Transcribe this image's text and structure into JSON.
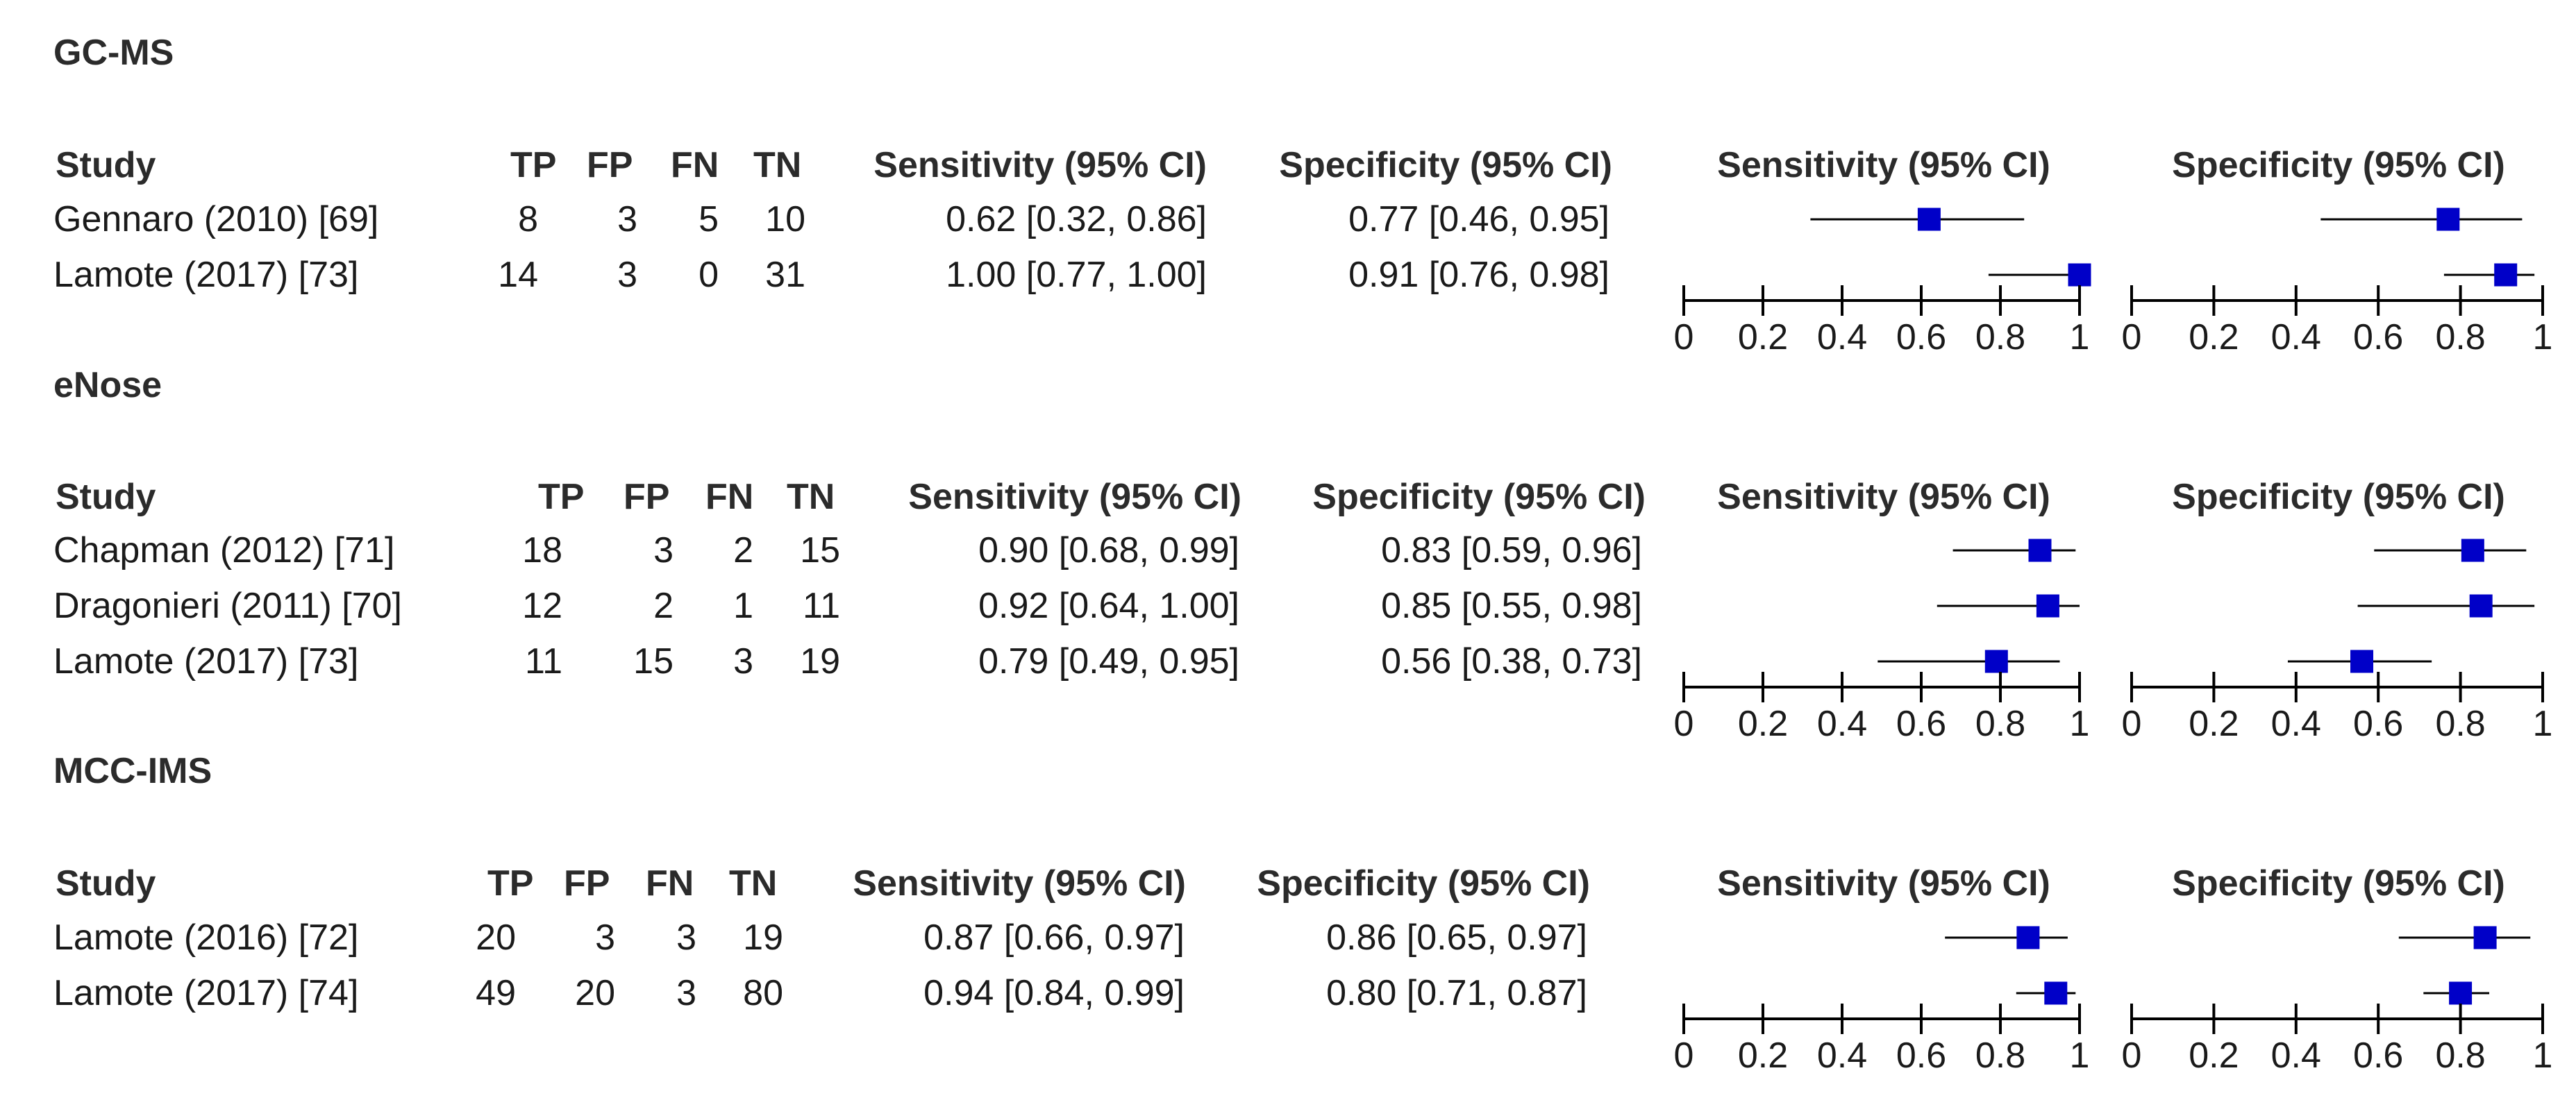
{
  "colors": {
    "marker": "#0000c8",
    "line": "#000000",
    "text": "#1a1a1a"
  },
  "chart_data": {
    "type": "forest",
    "columns": {
      "study": "Study",
      "tp": "TP",
      "fp": "FP",
      "fn": "FN",
      "tn": "TN",
      "sens": "Sensitivity (95% CI)",
      "spec": "Specificity (95% CI)",
      "plot_sens": "Sensitivity (95% CI)",
      "plot_spec": "Specificity (95% CI)"
    },
    "axis": {
      "range": [
        0,
        1
      ],
      "ticks": [
        0,
        0.2,
        0.4,
        0.6,
        0.8,
        1
      ],
      "tick_labels": [
        "0",
        "0.2",
        "0.4",
        "0.6",
        "0.8",
        "1"
      ]
    },
    "groups": [
      {
        "name": "GC-MS",
        "rows": [
          {
            "study": "Gennaro (2010) [69]",
            "tp": "8",
            "fp": "3",
            "fn": "5",
            "tn": "10",
            "sens_text": "0.62 [0.32, 0.86]",
            "spec_text": "0.77 [0.46, 0.95]",
            "sens": [
              0.62,
              0.32,
              0.86
            ],
            "spec": [
              0.77,
              0.46,
              0.95
            ]
          },
          {
            "study": "Lamote (2017) [73]",
            "tp": "14",
            "fp": "3",
            "fn": "0",
            "tn": "31",
            "sens_text": "1.00 [0.77, 1.00]",
            "spec_text": "0.91 [0.76, 0.98]",
            "sens": [
              1.0,
              0.77,
              1.0
            ],
            "spec": [
              0.91,
              0.76,
              0.98
            ]
          }
        ]
      },
      {
        "name": "eNose",
        "rows": [
          {
            "study": "Chapman (2012) [71]",
            "tp": "18",
            "fp": "3",
            "fn": "2",
            "tn": "15",
            "sens_text": "0.90 [0.68, 0.99]",
            "spec_text": "0.83 [0.59, 0.96]",
            "sens": [
              0.9,
              0.68,
              0.99
            ],
            "spec": [
              0.83,
              0.59,
              0.96
            ]
          },
          {
            "study": "Dragonieri (2011) [70]",
            "tp": "12",
            "fp": "2",
            "fn": "1",
            "tn": "11",
            "sens_text": "0.92 [0.64, 1.00]",
            "spec_text": "0.85 [0.55, 0.98]",
            "sens": [
              0.92,
              0.64,
              1.0
            ],
            "spec": [
              0.85,
              0.55,
              0.98
            ]
          },
          {
            "study": "Lamote (2017) [73]",
            "tp": "11",
            "fp": "15",
            "fn": "3",
            "tn": "19",
            "sens_text": "0.79 [0.49, 0.95]",
            "spec_text": "0.56 [0.38, 0.73]",
            "sens": [
              0.79,
              0.49,
              0.95
            ],
            "spec": [
              0.56,
              0.38,
              0.73
            ]
          }
        ]
      },
      {
        "name": "MCC-IMS",
        "rows": [
          {
            "study": "Lamote (2016) [72]",
            "tp": "20",
            "fp": "3",
            "fn": "3",
            "tn": "19",
            "sens_text": "0.87 [0.66, 0.97]",
            "spec_text": "0.86 [0.65, 0.97]",
            "sens": [
              0.87,
              0.66,
              0.97
            ],
            "spec": [
              0.86,
              0.65,
              0.97
            ]
          },
          {
            "study": "Lamote (2017) [74]",
            "tp": "49",
            "fp": "20",
            "fn": "3",
            "tn": "80",
            "sens_text": "0.94 [0.84, 0.99]",
            "spec_text": "0.80 [0.71, 0.87]",
            "sens": [
              0.94,
              0.84,
              0.99
            ],
            "spec": [
              0.8,
              0.71,
              0.87
            ]
          }
        ]
      }
    ]
  }
}
